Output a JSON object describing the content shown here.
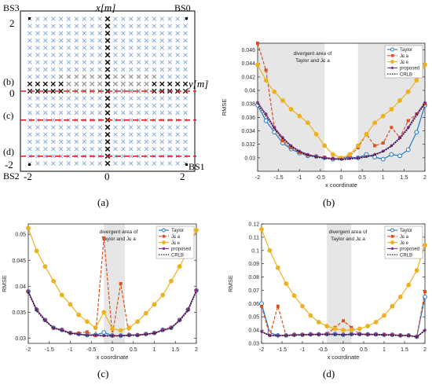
{
  "panel_a": {
    "caption": "(a)",
    "x_axis_label": "x[m]",
    "y_axis_label": "y[m]",
    "base_stations": [
      "BS0",
      "BS1",
      "BS2",
      "BS3"
    ],
    "tick_labels": {
      "x_min": "-2",
      "x_mid": "0",
      "x_max": "2",
      "y_max": "2",
      "y_mid": "0",
      "y_min": "-2"
    },
    "row_markers": [
      "(b)",
      "(c)",
      "(d)"
    ],
    "grid": {
      "xmin": -2,
      "xmax": 2,
      "ymin": -2,
      "ymax": 2,
      "n": 21
    },
    "row_lines_y": [
      0,
      -0.8,
      -1.8
    ],
    "colors": {
      "cross_normal": "#7ea6d8",
      "cross_gray": "#9a9a9a",
      "cross_black": "#111111",
      "line": "#e02020"
    }
  },
  "chart_data": [
    {
      "id": "b",
      "type": "line",
      "caption": "(b)",
      "xlabel": "x coordinate",
      "ylabel": "RMSE",
      "xlim": [
        -2,
        2
      ],
      "ylim": [
        0.028,
        0.047
      ],
      "yticks": [
        0.03,
        0.032,
        0.034,
        0.036,
        0.038,
        0.04,
        0.042,
        0.044,
        0.046
      ],
      "ytick_labels": [
        "0.03",
        "0.032",
        "0.034",
        "0.036",
        "0.038",
        "0.04",
        "0.042",
        "0.044",
        "0.046"
      ],
      "xticks": [
        -2,
        -1.5,
        -1,
        -0.5,
        0,
        0.5,
        1,
        1.5,
        2
      ],
      "xtick_labels": [
        "-2",
        "-1.5",
        "-1",
        "-0.5",
        "0",
        "0.5",
        "1",
        "1.5",
        "2"
      ],
      "shaded": [
        [
          -2,
          -0.4
        ],
        [
          0.4,
          2
        ]
      ],
      "annotation": [
        "divergent area of",
        "Taylor and Jɕ a"
      ],
      "legend_position": "top-right",
      "x": [
        -2,
        -1.8,
        -1.6,
        -1.4,
        -1.2,
        -1,
        -0.8,
        -0.6,
        -0.4,
        -0.2,
        0,
        0.2,
        0.4,
        0.6,
        0.8,
        1,
        1.2,
        1.4,
        1.6,
        1.8,
        2
      ],
      "series": [
        {
          "name": "Taylor",
          "color": "#1f77c4",
          "marker": "circle",
          "values": [
            0.0378,
            0.0355,
            0.0338,
            0.0322,
            0.0313,
            0.0307,
            0.0303,
            0.0302,
            0.03,
            0.0298,
            0.0299,
            0.0301,
            0.03,
            0.0305,
            0.0301,
            0.0298,
            0.0305,
            0.0303,
            0.0312,
            0.0338,
            0.0378
          ]
        },
        {
          "name": "Jɕ a",
          "color": "#d9531e",
          "marker": "square",
          "dash": "4,2",
          "values": [
            0.047,
            0.043,
            0.0345,
            0.0325,
            0.0315,
            0.0308,
            0.0304,
            0.0302,
            0.0301,
            0.0299,
            0.03,
            0.0302,
            0.0315,
            0.0335,
            0.0318,
            0.0322,
            0.0345,
            0.033,
            0.0355,
            0.0365,
            0.038
          ]
        },
        {
          "name": "Jɕ e",
          "color": "#edb120",
          "marker": "circle",
          "values": [
            0.0438,
            0.0415,
            0.0398,
            0.0385,
            0.0372,
            0.0362,
            0.0352,
            0.0335,
            0.0318,
            0.0305,
            0.03,
            0.0305,
            0.0318,
            0.0335,
            0.0352,
            0.0362,
            0.0372,
            0.0385,
            0.0398,
            0.0415,
            0.0438
          ]
        },
        {
          "name": "proposed",
          "color": "#7e2f8e",
          "marker": "dot",
          "values": [
            0.0382,
            0.0365,
            0.0345,
            0.033,
            0.0318,
            0.031,
            0.0305,
            0.0302,
            0.03,
            0.0299,
            0.0298,
            0.0299,
            0.03,
            0.0302,
            0.0305,
            0.031,
            0.0318,
            0.033,
            0.0345,
            0.0365,
            0.0382
          ]
        },
        {
          "name": "CRLB",
          "color": "#000000",
          "marker": "none",
          "dash": "1.5,1.5",
          "values": [
            0.038,
            0.0362,
            0.0343,
            0.0328,
            0.0317,
            0.0309,
            0.0304,
            0.0301,
            0.0299,
            0.0298,
            0.0297,
            0.0298,
            0.0299,
            0.0301,
            0.0304,
            0.0309,
            0.0317,
            0.0328,
            0.0343,
            0.0362,
            0.038
          ]
        }
      ]
    },
    {
      "id": "c",
      "type": "line",
      "caption": "(c)",
      "xlabel": "x coordinate",
      "ylabel": "RMSE",
      "xlim": [
        -2,
        2
      ],
      "ylim": [
        0.029,
        0.052
      ],
      "yticks": [
        0.03,
        0.035,
        0.04,
        0.045,
        0.05
      ],
      "ytick_labels": [
        "0.03",
        "0.035",
        "0.04",
        "0.045",
        "0.05"
      ],
      "xticks": [
        -2,
        -1.5,
        -1,
        -0.5,
        0,
        0.5,
        1,
        1.5,
        2
      ],
      "xtick_labels": [
        "-2",
        "-1.5",
        "-1",
        "-0.5",
        "0",
        "0.5",
        "1",
        "1.5",
        "2"
      ],
      "shaded": [
        [
          -0.2,
          0.3
        ]
      ],
      "annotation": [
        "divergent area of",
        "Taylor and Jɕ a"
      ],
      "legend_position": "top-right",
      "x": [
        -2,
        -1.8,
        -1.6,
        -1.4,
        -1.2,
        -1,
        -0.8,
        -0.6,
        -0.4,
        -0.2,
        0,
        0.2,
        0.4,
        0.6,
        0.8,
        1,
        1.2,
        1.4,
        1.6,
        1.8,
        2
      ],
      "series": [
        {
          "name": "Taylor",
          "color": "#1f77c4",
          "marker": "circle",
          "values": [
            0.039,
            0.0355,
            0.0335,
            0.032,
            0.0316,
            0.031,
            0.0308,
            0.0306,
            0.0306,
            0.0311,
            0.0305,
            0.0305,
            0.0306,
            0.0306,
            0.0308,
            0.031,
            0.0316,
            0.032,
            0.0335,
            0.0355,
            0.0392
          ]
        },
        {
          "name": "Jɕ a",
          "color": "#d9531e",
          "marker": "square",
          "dash": "4,2",
          "values": [
            0.039,
            0.0355,
            0.0335,
            0.032,
            0.0316,
            0.031,
            0.031,
            0.0312,
            0.0305,
            0.0493,
            0.0305,
            0.0405,
            0.0306,
            0.0306,
            0.0308,
            0.031,
            0.0316,
            0.032,
            0.0335,
            0.0355,
            0.0392
          ]
        },
        {
          "name": "Jɕ e",
          "color": "#edb120",
          "marker": "circle",
          "values": [
            0.0512,
            0.0468,
            0.0438,
            0.041,
            0.0383,
            0.0365,
            0.0345,
            0.0332,
            0.032,
            0.035,
            0.0318,
            0.0315,
            0.032,
            0.0332,
            0.0348,
            0.0365,
            0.0383,
            0.041,
            0.0438,
            0.0468,
            0.0508
          ]
        },
        {
          "name": "proposed",
          "color": "#7e2f8e",
          "marker": "dot",
          "values": [
            0.039,
            0.0355,
            0.0335,
            0.032,
            0.0316,
            0.031,
            0.0308,
            0.0306,
            0.0306,
            0.0305,
            0.0305,
            0.0305,
            0.0306,
            0.0306,
            0.0308,
            0.031,
            0.0316,
            0.032,
            0.0335,
            0.0355,
            0.0392
          ]
        },
        {
          "name": "CRLB",
          "color": "#000000",
          "marker": "none",
          "dash": "1.5,1.5",
          "values": [
            0.0388,
            0.0352,
            0.0333,
            0.0319,
            0.0314,
            0.0309,
            0.0307,
            0.0305,
            0.0305,
            0.0304,
            0.0304,
            0.0304,
            0.0305,
            0.0305,
            0.0307,
            0.0309,
            0.0314,
            0.0319,
            0.0333,
            0.0352,
            0.039
          ]
        }
      ]
    },
    {
      "id": "d",
      "type": "line",
      "caption": "(d)",
      "xlabel": "x coordinate",
      "ylabel": "RMSE",
      "xlim": [
        -2,
        2
      ],
      "ylim": [
        0.03,
        0.12
      ],
      "yticks": [
        0.03,
        0.04,
        0.05,
        0.06,
        0.07,
        0.08,
        0.09,
        0.1,
        0.11,
        0.12
      ],
      "ytick_labels": [
        "0.03",
        "0.04",
        "0.05",
        "0.06",
        "0.07",
        "0.08",
        "0.09",
        "0.1",
        "0.11",
        "0.12"
      ],
      "xticks": [
        -2,
        -1.5,
        -1,
        -0.5,
        0,
        0.5,
        1,
        1.5,
        2
      ],
      "xtick_labels": [
        "-2",
        "-1.5",
        "-1",
        "-0.5",
        "0",
        "0.5",
        "1",
        "1.5",
        "2"
      ],
      "shaded": [
        [
          -0.4,
          0.2
        ]
      ],
      "annotation": [
        "divergent area of",
        "Taylor and Jɕ a"
      ],
      "legend_position": "top-right",
      "x": [
        -2,
        -1.8,
        -1.6,
        -1.4,
        -1.2,
        -1,
        -0.8,
        -0.6,
        -0.4,
        -0.2,
        0,
        0.2,
        0.4,
        0.6,
        0.8,
        1,
        1.2,
        1.4,
        1.6,
        1.8,
        2
      ],
      "series": [
        {
          "name": "Taylor",
          "color": "#1f77c4",
          "marker": "circle",
          "values": [
            0.06,
            0.038,
            0.036,
            0.036,
            0.0365,
            0.0365,
            0.0368,
            0.0368,
            0.037,
            0.037,
            0.0365,
            0.037,
            0.037,
            0.0368,
            0.0368,
            0.0365,
            0.0365,
            0.036,
            0.036,
            0.035,
            0.065
          ]
        },
        {
          "name": "Jɕ a",
          "color": "#d9531e",
          "marker": "square",
          "dash": "4,2",
          "values": [
            0.058,
            0.036,
            0.058,
            0.036,
            0.0365,
            0.0365,
            0.0368,
            0.0368,
            0.037,
            0.042,
            0.047,
            0.042,
            0.037,
            0.0368,
            0.0368,
            0.0365,
            0.0365,
            0.036,
            0.036,
            0.035,
            0.069
          ]
        },
        {
          "name": "Jɕ e",
          "color": "#edb120",
          "marker": "circle",
          "values": [
            0.116,
            0.1,
            0.087,
            0.075,
            0.066,
            0.058,
            0.051,
            0.046,
            0.043,
            0.041,
            0.04,
            0.04,
            0.041,
            0.043,
            0.046,
            0.051,
            0.058,
            0.065,
            0.074,
            0.085,
            0.104
          ]
        },
        {
          "name": "proposed",
          "color": "#7e2f8e",
          "marker": "dot",
          "values": [
            0.039,
            0.036,
            0.036,
            0.036,
            0.0365,
            0.0365,
            0.0368,
            0.0368,
            0.037,
            0.037,
            0.0365,
            0.037,
            0.037,
            0.0368,
            0.0368,
            0.0365,
            0.0365,
            0.036,
            0.036,
            0.035,
            0.04
          ]
        },
        {
          "name": "CRLB",
          "color": "#000000",
          "marker": "none",
          "dash": "1.5,1.5",
          "values": [
            0.0385,
            0.0358,
            0.0357,
            0.0358,
            0.036,
            0.0362,
            0.0364,
            0.0365,
            0.0366,
            0.0366,
            0.0363,
            0.0366,
            0.0366,
            0.0365,
            0.0364,
            0.0362,
            0.036,
            0.0358,
            0.0357,
            0.0348,
            0.0395
          ]
        }
      ]
    }
  ]
}
